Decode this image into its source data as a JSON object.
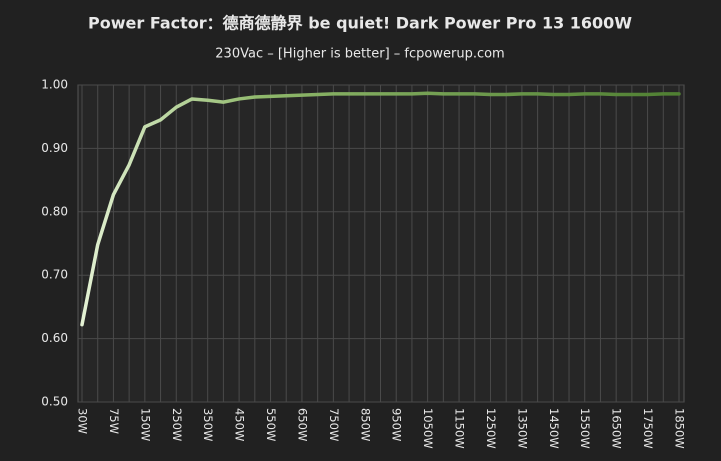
{
  "chart_data": {
    "type": "line",
    "title": "Power Factor：德商德静界 be quiet! Dark Power Pro 13 1600W",
    "subtitle": "230Vac – [Higher is better] – fcpowerup.com",
    "categories": [
      "30W",
      null,
      "75W",
      null,
      "150W",
      null,
      "250W",
      null,
      "350W",
      null,
      "450W",
      null,
      "550W",
      null,
      "650W",
      null,
      "750W",
      null,
      "850W",
      null,
      "950W",
      null,
      "1050W",
      null,
      "1150W",
      null,
      "1250W",
      null,
      "1350W",
      null,
      "1450W",
      null,
      "1550W",
      null,
      "1650W",
      null,
      "1750W",
      null,
      "1850W"
    ],
    "series": [
      {
        "color": "#4f7f32",
        "values": [
          0.622,
          0.748,
          0.827,
          0.874,
          0.934,
          0.945,
          0.965,
          0.978,
          0.976,
          0.973,
          0.978,
          0.981,
          0.982,
          0.983,
          0.984,
          0.985,
          0.986,
          0.986,
          0.986,
          0.986,
          0.986,
          0.986,
          0.987,
          0.986,
          0.986,
          0.986,
          0.985,
          0.985,
          0.986,
          0.986,
          0.985,
          0.985,
          0.986,
          0.986,
          0.985,
          0.985,
          0.985,
          0.986,
          0.986
        ]
      }
    ],
    "ylim": [
      0.5,
      1.0
    ],
    "yticks": [
      {
        "value": 0.5,
        "label": "0.50"
      },
      {
        "value": 0.6,
        "label": "0.60"
      },
      {
        "value": 0.7,
        "label": "0.70"
      },
      {
        "value": 0.8,
        "label": "0.80"
      },
      {
        "value": 0.9,
        "label": "0.90"
      },
      {
        "value": 1.0,
        "label": "1.00"
      }
    ],
    "grid": true
  }
}
